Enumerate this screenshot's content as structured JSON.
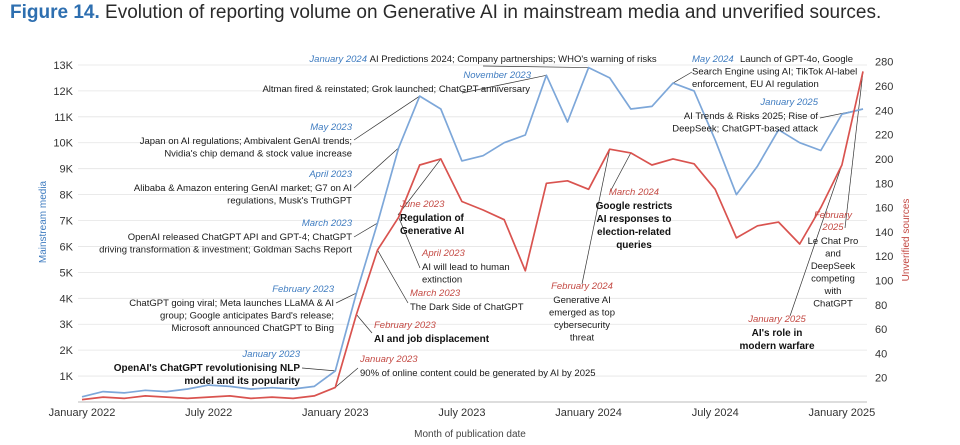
{
  "figure": {
    "number": "Figure 14.",
    "caption": "Evolution of reporting volume on Generative AI in mainstream media and unverified sources."
  },
  "colors": {
    "mainstream": "#7da7d9",
    "unverified": "#d9534f",
    "title_blue": "#2e6fb0"
  },
  "chart_data": {
    "type": "line",
    "title": "Evolution of reporting volume on Generative AI in mainstream media and unverified sources.",
    "xlabel": "Month of publication date",
    "ylabel_left": "Mainstream media",
    "ylabel_right": "Unverified sources",
    "x_ticks": [
      "January 2022",
      "July 2022",
      "January 2023",
      "July 2023",
      "January 2024",
      "July 2024",
      "January 2025"
    ],
    "x_tick_index": [
      0,
      6,
      12,
      18,
      24,
      30,
      36
    ],
    "y_left": {
      "min": 0,
      "max": 13500,
      "ticks": [
        1000,
        2000,
        3000,
        4000,
        5000,
        6000,
        7000,
        8000,
        9000,
        10000,
        11000,
        12000,
        13000
      ],
      "tick_labels": [
        "1K",
        "2K",
        "3K",
        "4K",
        "5K",
        "6K",
        "7K",
        "8K",
        "9K",
        "10K",
        "11K",
        "12K",
        "13K"
      ]
    },
    "y_right": {
      "min": 0,
      "max": 288,
      "ticks": [
        20,
        40,
        60,
        80,
        100,
        120,
        140,
        160,
        180,
        200,
        220,
        240,
        260,
        280
      ],
      "tick_labels": [
        "20",
        "40",
        "60",
        "80",
        "100",
        "120",
        "140",
        "160",
        "180",
        "200",
        "220",
        "240",
        "260",
        "280"
      ]
    },
    "months": [
      "Jan 2022",
      "Feb 2022",
      "Mar 2022",
      "Apr 2022",
      "May 2022",
      "Jun 2022",
      "Jul 2022",
      "Aug 2022",
      "Sep 2022",
      "Oct 2022",
      "Nov 2022",
      "Dec 2022",
      "Jan 2023",
      "Feb 2023",
      "Mar 2023",
      "Apr 2023",
      "May 2023",
      "Jun 2023",
      "Jul 2023",
      "Aug 2023",
      "Sep 2023",
      "Oct 2023",
      "Nov 2023",
      "Dec 2023",
      "Jan 2024",
      "Feb 2024",
      "Mar 2024",
      "Apr 2024",
      "May 2024",
      "Jun 2024",
      "Jul 2024",
      "Aug 2024",
      "Sep 2024",
      "Oct 2024",
      "Nov 2024",
      "Dec 2024",
      "Jan 2025",
      "Feb 2025"
    ],
    "series": [
      {
        "name": "Mainstream media",
        "axis": "left",
        "color": "#7da7d9",
        "values": [
          200,
          400,
          350,
          450,
          400,
          500,
          650,
          600,
          500,
          550,
          500,
          600,
          1200,
          4200,
          6900,
          9800,
          11800,
          11300,
          9300,
          9500,
          10000,
          10300,
          12600,
          10800,
          12900,
          12500,
          11300,
          11400,
          12300,
          12000,
          10100,
          8000,
          9100,
          10500,
          10000,
          9700,
          11100,
          11300
        ]
      },
      {
        "name": "Unverified sources",
        "axis": "right",
        "color": "#d9534f",
        "values": [
          2,
          4,
          3,
          5,
          4,
          3,
          4,
          5,
          3,
          4,
          3,
          5,
          12,
          72,
          125,
          152,
          195,
          200,
          165,
          158,
          150,
          108,
          180,
          182,
          175,
          208,
          205,
          195,
          200,
          196,
          175,
          135,
          145,
          148,
          130,
          160,
          195,
          272
        ]
      }
    ],
    "annotations": [
      {
        "id": "jan2024",
        "date": "January 2024",
        "series": "mainstream",
        "text": [
          "AI Predictions 2024; Company partnerships; WHO's warning of risks"
        ]
      },
      {
        "id": "nov2023",
        "date": "November 2023",
        "series": "mainstream",
        "text": [
          "Altman fired & reinstated; Grok launched; ChatGPT anniversary"
        ]
      },
      {
        "id": "may2023",
        "date": "May 2023",
        "series": "mainstream",
        "text": [
          "Japan on AI regulations; Ambivalent GenAI trends;",
          "Nvidia's chip demand & stock value increase"
        ]
      },
      {
        "id": "apr2023",
        "date": "April 2023",
        "series": "mainstream",
        "text": [
          "Alibaba & Amazon entering GenAI market; G7 on AI",
          "regulations, Musk's TruthGPT"
        ]
      },
      {
        "id": "mar2023",
        "date": "March 2023",
        "series": "mainstream",
        "text": [
          "OpenAI released ChatGPT API and GPT-4; ChatGPT",
          "driving transformation & investment; Goldman Sachs Report"
        ]
      },
      {
        "id": "feb2023",
        "date": "February 2023",
        "series": "mainstream",
        "text": [
          "ChatGPT going viral; Meta launches LLaMA & AI",
          "group; Google anticipates Bard's release;",
          "Microsoft announced ChatGPT to Bing"
        ]
      },
      {
        "id": "jan2023",
        "date": "January 2023",
        "series": "mainstream",
        "text": [
          "OpenAI's ChatGPT revolutionising NLP",
          "model and its popularity"
        ]
      },
      {
        "id": "may2024",
        "date": "May 2024",
        "series": "mainstream",
        "text": [
          "Launch of GPT-4o, Google",
          "Search Engine using AI; TikTok AI-label",
          "enforcement, EU AI regulation"
        ]
      },
      {
        "id": "jan2025",
        "date": "January 2025",
        "series": "mainstream",
        "text": [
          "AI Trends & Risks 2025; Rise of",
          "DeepSeek; ChatGPT-based attack"
        ]
      },
      {
        "id": "r_jun2023",
        "date": "June 2023",
        "series": "unverified",
        "text": [
          "Regulation of",
          "Generative AI"
        ]
      },
      {
        "id": "r_apr2023",
        "date": "April 2023",
        "series": "unverified",
        "text": [
          "AI will lead to human",
          "extinction"
        ]
      },
      {
        "id": "r_mar2023",
        "date": "March 2023",
        "series": "unverified",
        "text": [
          "The Dark Side of ChatGPT"
        ]
      },
      {
        "id": "r_feb2023",
        "date": "February 2023",
        "series": "unverified",
        "text": [
          "AI and job displacement"
        ]
      },
      {
        "id": "r_jan2023",
        "date": "January 2023",
        "series": "unverified",
        "text": [
          "90% of online content could be generated by AI by 2025"
        ]
      },
      {
        "id": "r_mar2024",
        "date": "March 2024",
        "series": "unverified",
        "text": [
          "Google restricts",
          "AI responses to",
          "election-related",
          "queries"
        ]
      },
      {
        "id": "r_feb2024",
        "date": "February 2024",
        "series": "unverified",
        "text": [
          "Generative AI",
          "emerged as top",
          "cybersecurity",
          "threat"
        ]
      },
      {
        "id": "r_jan2025",
        "date": "January 2025",
        "series": "unverified",
        "text": [
          "AI's role in",
          "modern warfare"
        ]
      },
      {
        "id": "r_feb2025",
        "date": "February",
        "date2": "2025",
        "series": "unverified",
        "text": [
          "Le Chat Pro",
          "and",
          "DeepSeek",
          "competing",
          "with",
          "ChatGPT"
        ]
      }
    ]
  }
}
